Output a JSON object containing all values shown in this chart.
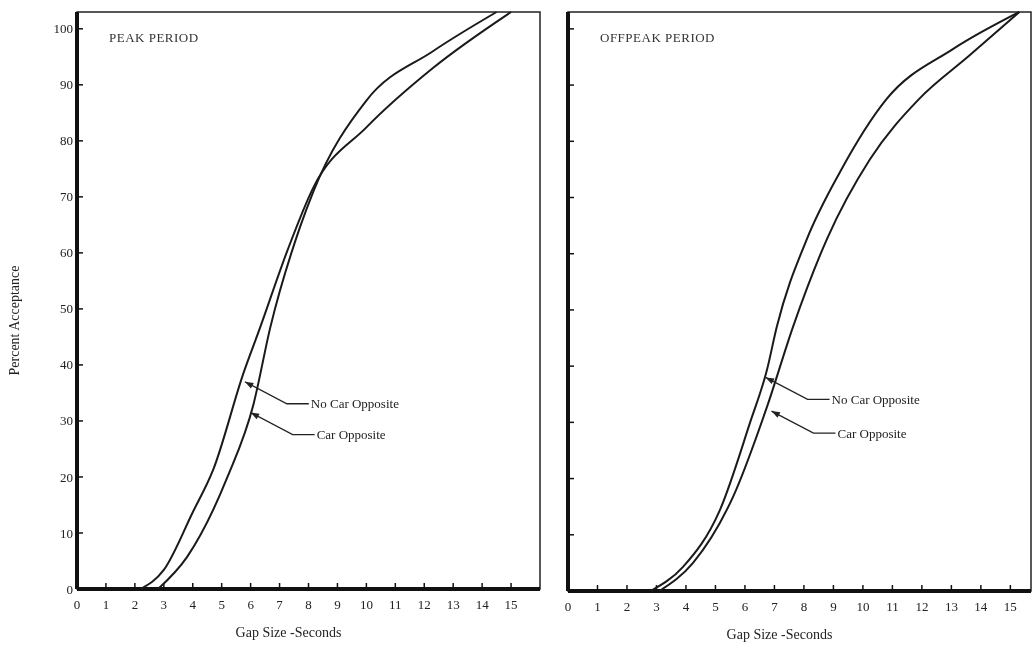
{
  "chart_data": [
    {
      "type": "line",
      "title": "PEAK PERIOD",
      "xlabel": "Gap Size -Seconds",
      "ylabel": "Percent Acceptance",
      "xlim": [
        0,
        16
      ],
      "ylim": [
        0,
        103
      ],
      "xticks": [
        0,
        1,
        2,
        3,
        4,
        5,
        6,
        7,
        8,
        9,
        10,
        11,
        12,
        13,
        14,
        15
      ],
      "yticks": [
        0,
        10,
        20,
        30,
        40,
        50,
        60,
        70,
        80,
        90,
        100
      ],
      "grid": false,
      "line_style": "solid",
      "series": [
        {
          "color": "#1a1a1a",
          "x": [
            2.2,
            3.0,
            4.0,
            4.7,
            5.75,
            6.33,
            7.27,
            8.17,
            10.0,
            12.3,
            15.0
          ],
          "values": [
            0,
            3.4,
            13.7,
            21.2,
            38.5,
            46.7,
            60.4,
            71.7,
            82.4,
            93,
            103
          ]
        },
        {
          "color": "#1a1a1a",
          "x": [
            2.8,
            3.8,
            5.2,
            6.1,
            6.68,
            7.7,
            8.17,
            10.0,
            12.3,
            14.5
          ],
          "values": [
            0,
            5.7,
            20,
            33,
            46.7,
            64.5,
            71,
            87.2,
            96,
            103
          ]
        }
      ],
      "annotations": [
        {
          "text": "No Car Opposite",
          "x": 5.8,
          "y": 37
        },
        {
          "text": "Car Opposite",
          "x": 6.0,
          "y": 31.5
        }
      ]
    },
    {
      "type": "line",
      "title": "OFFPEAK PERIOD",
      "xlabel": "Gap Size -Seconds",
      "xlim": [
        0,
        15.7
      ],
      "ylim": [
        0,
        103
      ],
      "xticks": [
        0,
        1,
        2,
        3,
        4,
        5,
        6,
        7,
        8,
        9,
        10,
        11,
        12,
        13,
        14,
        15
      ],
      "yticks": [
        0,
        10,
        20,
        30,
        40,
        50,
        60,
        70,
        80,
        90,
        100
      ],
      "tick_labels": "x",
      "grid": false,
      "line_style": "solid",
      "series": [
        {
          "color": "#1a1a1a",
          "x": [
            2.8,
            3.9,
            5.15,
            6.17,
            6.75,
            7.08,
            8.1,
            9.22,
            10.8,
            13.05,
            15.3
          ],
          "values": [
            0,
            4.3,
            14.4,
            29.9,
            39.4,
            47,
            62.6,
            74.5,
            87.5,
            96.4,
            103
          ]
        },
        {
          "color": "#1a1a1a",
          "x": [
            3.1,
            4.24,
            5.6,
            6.75,
            7.63,
            8.78,
            10.24,
            11.9,
            13.6,
            15.3
          ],
          "values": [
            0,
            5,
            16.8,
            32.8,
            47,
            62.6,
            76.8,
            87.5,
            95.2,
            103
          ]
        }
      ],
      "annotations": [
        {
          "text": "No Car Opposite",
          "x": 6.7,
          "y": 38
        },
        {
          "text": "Car Opposite",
          "x": 6.9,
          "y": 32
        }
      ]
    }
  ]
}
